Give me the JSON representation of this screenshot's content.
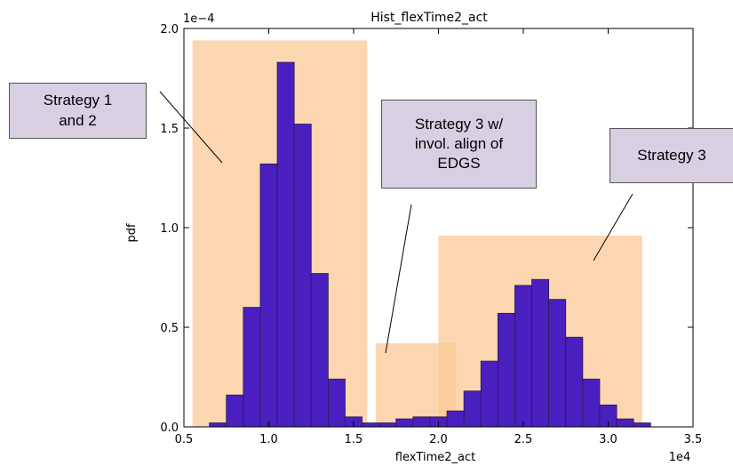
{
  "chart_data": {
    "type": "bar",
    "title": "Hist_flexTime2_act",
    "xlabel": "flexTime2_act",
    "ylabel": "pdf",
    "x_offset_label": "1e4",
    "y_offset_label": "1e−4",
    "xlim": [
      0.5,
      3.5
    ],
    "ylim": [
      0.0,
      2.0
    ],
    "x_ticks": [
      "0.5",
      "1.0",
      "1.5",
      "2.0",
      "2.5",
      "3.0",
      "3.5"
    ],
    "y_ticks": [
      "0.0",
      "0.5",
      "1.0",
      "1.5",
      "2.0"
    ],
    "grid": false,
    "bin_width": 0.1,
    "bins_left_edges": [
      0.65,
      0.75,
      0.85,
      0.95,
      1.05,
      1.15,
      1.25,
      1.35,
      1.45,
      1.55,
      1.65,
      1.75,
      1.85,
      1.95,
      2.05,
      2.15,
      2.25,
      2.35,
      2.45,
      2.55,
      2.65,
      2.75,
      2.85,
      2.95,
      3.05,
      3.15
    ],
    "values": [
      0.02,
      0.16,
      0.6,
      1.32,
      1.83,
      1.52,
      0.77,
      0.24,
      0.05,
      0.02,
      0.02,
      0.04,
      0.05,
      0.05,
      0.08,
      0.18,
      0.33,
      0.57,
      0.71,
      0.74,
      0.64,
      0.45,
      0.24,
      0.11,
      0.04,
      0.02
    ],
    "bar_color": "#4a1fc0",
    "highlight_regions": [
      {
        "x": [
          0.55,
          1.58
        ],
        "y_top": 1.94
      },
      {
        "x": [
          1.63,
          2.1
        ],
        "y_top": 0.42
      },
      {
        "x": [
          2.0,
          3.2
        ],
        "y_top": 0.96
      }
    ],
    "highlight_color": "#fbc896"
  },
  "callouts": [
    {
      "text": "Strategy 1\nand 2"
    },
    {
      "text": "Strategy 3 w/\ninvol. align of\nEDGS"
    },
    {
      "text": "Strategy 3"
    }
  ]
}
